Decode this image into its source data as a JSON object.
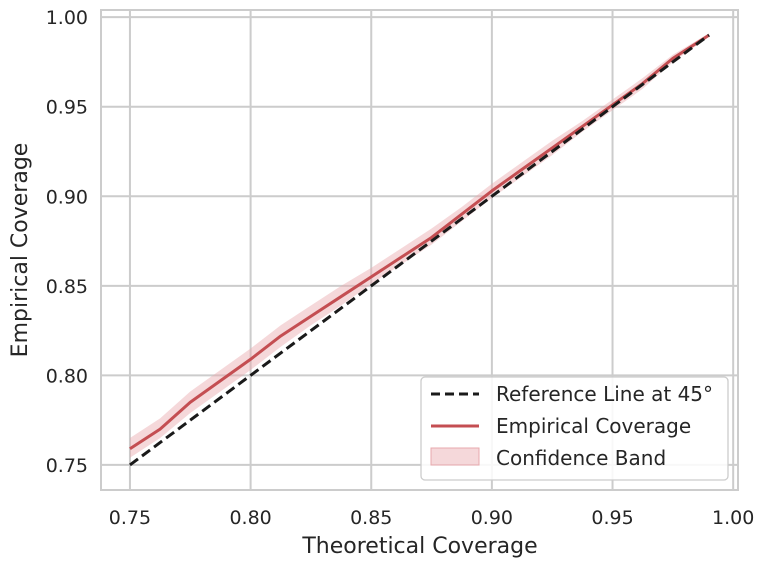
{
  "chart_data": {
    "type": "line",
    "title": "",
    "xlabel": "Theoretical Coverage",
    "ylabel": "Empirical Coverage",
    "xlim": [
      0.738,
      1.002
    ],
    "ylim": [
      0.736,
      1.004
    ],
    "xticks": [
      0.75,
      0.8,
      0.85,
      0.9,
      0.95,
      1.0
    ],
    "xtick_labels": [
      "0.75",
      "0.80",
      "0.85",
      "0.90",
      "0.95",
      "1.00"
    ],
    "yticks": [
      0.75,
      0.8,
      0.85,
      0.9,
      0.95,
      1.0
    ],
    "ytick_labels": [
      "0.75",
      "0.80",
      "0.85",
      "0.90",
      "0.95",
      "1.00"
    ],
    "grid": true,
    "legend_position": "lower-right",
    "series": [
      {
        "name": "Reference Line at 45°",
        "style": "dashed",
        "color": "#1a1a1a",
        "x": [
          0.75,
          0.99
        ],
        "y": [
          0.75,
          0.99
        ]
      },
      {
        "name": "Empirical Coverage",
        "style": "solid",
        "color": "#c44e52",
        "x": [
          0.75,
          0.7625,
          0.775,
          0.7875,
          0.8,
          0.8125,
          0.825,
          0.8375,
          0.85,
          0.8625,
          0.875,
          0.8875,
          0.9,
          0.9125,
          0.925,
          0.9375,
          0.95,
          0.9625,
          0.975,
          0.99
        ],
        "y": [
          0.759,
          0.77,
          0.785,
          0.797,
          0.809,
          0.822,
          0.833,
          0.844,
          0.855,
          0.866,
          0.877,
          0.89,
          0.903,
          0.915,
          0.927,
          0.939,
          0.951,
          0.963,
          0.977,
          0.99
        ]
      },
      {
        "name": "Confidence Band",
        "style": "band",
        "color": "#e8a9ad",
        "x": [
          0.75,
          0.7625,
          0.775,
          0.7875,
          0.8,
          0.8125,
          0.825,
          0.8375,
          0.85,
          0.8625,
          0.875,
          0.8875,
          0.9,
          0.9125,
          0.925,
          0.9375,
          0.95,
          0.9625,
          0.975,
          0.99
        ],
        "lower": [
          0.754,
          0.765,
          0.779,
          0.791,
          0.803,
          0.816,
          0.828,
          0.839,
          0.851,
          0.862,
          0.873,
          0.886,
          0.899,
          0.911,
          0.923,
          0.936,
          0.948,
          0.96,
          0.975,
          0.989
        ],
        "upper": [
          0.765,
          0.776,
          0.791,
          0.803,
          0.815,
          0.828,
          0.839,
          0.85,
          0.86,
          0.871,
          0.882,
          0.894,
          0.907,
          0.919,
          0.931,
          0.942,
          0.954,
          0.966,
          0.979,
          0.991
        ]
      }
    ]
  }
}
